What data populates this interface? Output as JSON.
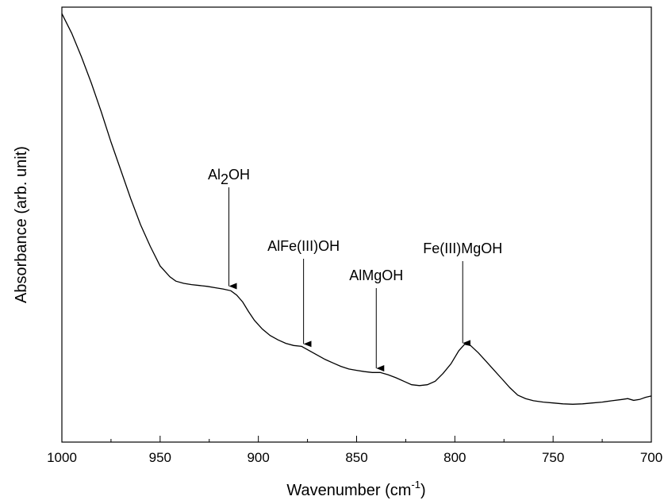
{
  "chart_data": {
    "type": "line",
    "title": "",
    "xlabel": "Wavenumber (cm",
    "xlabel_sup": "-1",
    "xlabel_close": ")",
    "ylabel": "Absorbance (arb. unit)",
    "xlim": [
      1000,
      700
    ],
    "x_reversed": true,
    "ylim": [
      0,
      1
    ],
    "y_ticks_labeled": false,
    "x_ticks": [
      1000,
      950,
      900,
      850,
      800,
      750,
      700
    ],
    "grid": false,
    "series": [
      {
        "name": "",
        "x": [
          1000,
          995,
          990,
          985,
          980,
          975,
          970,
          965,
          960,
          955,
          950,
          945,
          942,
          938,
          934,
          930,
          926,
          922,
          918,
          914,
          911,
          908,
          905,
          902,
          898,
          894,
          890,
          886,
          882,
          878,
          874,
          870,
          866,
          862,
          858,
          854,
          850,
          846,
          842,
          838,
          834,
          830,
          826,
          822,
          818,
          814,
          810,
          806,
          802,
          798,
          795,
          792,
          788,
          784,
          780,
          776,
          772,
          768,
          764,
          760,
          755,
          750,
          745,
          740,
          735,
          730,
          725,
          720,
          715,
          712,
          709,
          706,
          703,
          700
        ],
        "y": [
          0.985,
          0.94,
          0.885,
          0.825,
          0.76,
          0.69,
          0.625,
          0.56,
          0.5,
          0.45,
          0.405,
          0.38,
          0.37,
          0.365,
          0.362,
          0.36,
          0.358,
          0.355,
          0.352,
          0.348,
          0.338,
          0.322,
          0.3,
          0.28,
          0.26,
          0.245,
          0.235,
          0.227,
          0.222,
          0.22,
          0.21,
          0.2,
          0.19,
          0.182,
          0.174,
          0.168,
          0.165,
          0.162,
          0.16,
          0.16,
          0.155,
          0.148,
          0.14,
          0.132,
          0.13,
          0.132,
          0.14,
          0.158,
          0.18,
          0.21,
          0.225,
          0.222,
          0.205,
          0.185,
          0.165,
          0.145,
          0.125,
          0.108,
          0.1,
          0.095,
          0.092,
          0.09,
          0.088,
          0.087,
          0.088,
          0.09,
          0.092,
          0.095,
          0.098,
          0.1,
          0.096,
          0.098,
          0.103,
          0.106
        ]
      }
    ],
    "annotations": [
      {
        "label": "Al",
        "sub": "2",
        "after": "OH",
        "x": 915,
        "arrow_tip_y": 0.355
      },
      {
        "label": "AlFe(III)OH",
        "x": 877,
        "arrow_tip_y": 0.222
      },
      {
        "label": "AlMgOH",
        "x": 840,
        "arrow_tip_y": 0.166
      },
      {
        "label": "Fe(III)MgOH",
        "x": 796,
        "arrow_tip_y": 0.224
      }
    ]
  }
}
